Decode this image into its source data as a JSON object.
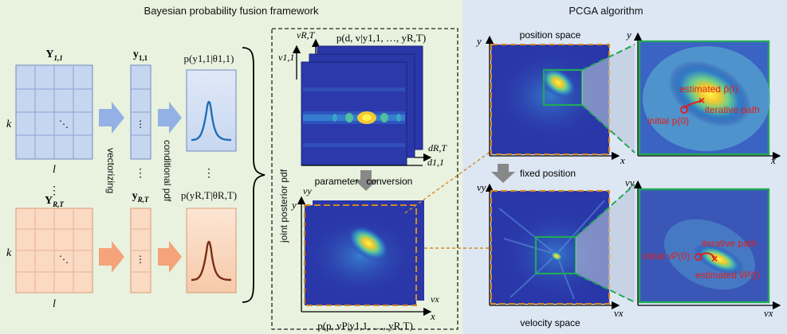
{
  "left_panel": {
    "title": "Bayesian probability fusion framework",
    "matrix_top": "Y",
    "matrix_top_sub": "1,1",
    "matrix_bottom": "Y",
    "matrix_bottom_sub": "R,T",
    "row_label": "k",
    "col_label": "l",
    "vector_top": "y",
    "vector_top_sub": "1,1",
    "vector_bottom": "y",
    "vector_bottom_sub": "R,T",
    "pdf_top": "p(y1,1|θ1,1)",
    "pdf_bottom": "p(yR,T|θR,T)",
    "step_vectorizing": "vectorizing",
    "step_conditional": "conditional pdf",
    "joint_label": "joint posterior pdf",
    "dots": "⋮",
    "diag_dots": "⋱",
    "delay_doppler": {
      "title": "p(d, v|y1,1, …, yR,T)",
      "axis_v_top": "vR,T",
      "axis_v_bottom": "v1,1",
      "axis_d_top": "dR,T",
      "axis_d_bottom": "d1,1"
    },
    "conversion_label": "parameter   conversion",
    "pos_vel": {
      "title": "p(p, vP|y1,1, …, yR,T)",
      "axis_y": "y",
      "axis_vy": "vy",
      "axis_x": "x",
      "axis_vx": "vx"
    }
  },
  "right_panel": {
    "title": "PCGA algorithm",
    "position_space": "position space",
    "velocity_space": "velocity space",
    "fixed_position": "fixed position",
    "axis_x": "x",
    "axis_y": "y",
    "axis_vx": "vx",
    "axis_vy": "vy",
    "zoom_pos": {
      "estimated": "estimated p̂(I)",
      "iterative": "iterative path",
      "initial": "initial p(0)"
    },
    "zoom_vel": {
      "iterative": "iterative path",
      "initial": "initial vP(0)",
      "estimated": "estimated v̂P(I)"
    }
  },
  "colors": {
    "left_bg": "#e9f2de",
    "right_bg": "#dde7f4",
    "blue_cell": "#c7d6f0",
    "orange_cell": "#fbdac4",
    "heatmap_bg": "#2a37a8",
    "hot": "#f5e63a",
    "green_box": "#22a85a",
    "annotation_red": "#e0201a",
    "orange_dash": "#c8751f"
  },
  "icons": [
    "arrow-right-icon",
    "arrow-down-icon",
    "brace-icon",
    "peak-curve-icon"
  ]
}
